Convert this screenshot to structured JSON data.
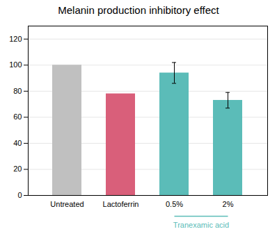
{
  "chart_data": {
    "type": "bar",
    "title": "Melanin production inhibitory effect",
    "categories": [
      "Untreated",
      "Lactoferrin",
      "0.5%",
      "2%"
    ],
    "values": [
      100,
      78,
      94,
      73
    ],
    "errors": [
      0,
      0,
      8,
      6
    ],
    "colors": [
      "#c0c0c0",
      "#d95f7a",
      "#5bbcb8",
      "#5bbcb8"
    ],
    "ylim": [
      0,
      130
    ],
    "yticks": [
      0,
      20,
      40,
      60,
      80,
      100,
      120
    ],
    "grid": true,
    "annotations": [
      {
        "text": "Tranexamic acid",
        "categories": [
          "0.5%",
          "2%"
        ],
        "color": "#5bbcb8"
      }
    ]
  }
}
